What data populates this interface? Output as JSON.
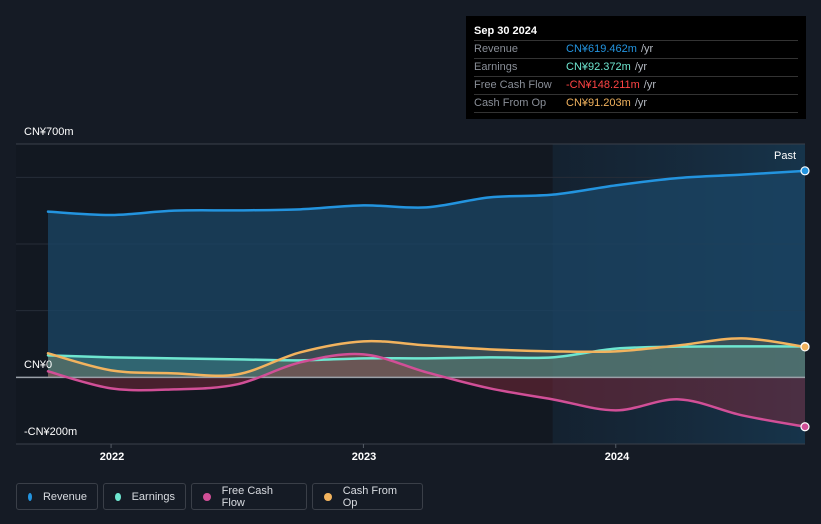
{
  "tooltip": {
    "date": "Sep 30 2024",
    "rows": [
      {
        "label": "Revenue",
        "value": "CN¥619.462m",
        "unit": "/yr",
        "color": "#2394df"
      },
      {
        "label": "Earnings",
        "value": "CN¥92.372m",
        "unit": "/yr",
        "color": "#6ee6d0"
      },
      {
        "label": "Free Cash Flow",
        "value": "-CN¥148.211m",
        "unit": "/yr",
        "color": "#ff4444"
      },
      {
        "label": "Cash From Op",
        "value": "CN¥91.203m",
        "unit": "/yr",
        "color": "#f2b35e"
      }
    ]
  },
  "legend": [
    {
      "label": "Revenue",
      "color": "#2394df"
    },
    {
      "label": "Earnings",
      "color": "#6ee6d0"
    },
    {
      "label": "Free Cash Flow",
      "color": "#d14f97"
    },
    {
      "label": "Cash From Op",
      "color": "#f2b35e"
    }
  ],
  "past_label": "Past",
  "chart_data": {
    "type": "area",
    "title": "",
    "xlabel": "",
    "ylabel": "",
    "currency": "CN¥",
    "ylim": [
      -200,
      700
    ],
    "y_tick_labels": [
      "CN¥700m",
      "CN¥0",
      "-CN¥200m"
    ],
    "y_gridlines": [
      700,
      600,
      400,
      200,
      0,
      -200
    ],
    "x_tick_labels": [
      "2022",
      "2023",
      "2024"
    ],
    "x_ticks": [
      2022.0,
      2023.0,
      2024.0
    ],
    "xlim": [
      2021.75,
      2024.75
    ],
    "past_region_start": 2023.75,
    "series": [
      {
        "name": "Revenue",
        "color": "#2394df",
        "points": [
          [
            2021.75,
            497
          ],
          [
            2022.0,
            487
          ],
          [
            2022.25,
            500
          ],
          [
            2022.5,
            501
          ],
          [
            2022.75,
            504
          ],
          [
            2023.0,
            516
          ],
          [
            2023.25,
            510
          ],
          [
            2023.5,
            540
          ],
          [
            2023.75,
            548
          ],
          [
            2024.0,
            576
          ],
          [
            2024.25,
            598
          ],
          [
            2024.5,
            608
          ],
          [
            2024.75,
            619.5
          ]
        ]
      },
      {
        "name": "Earnings",
        "color": "#6ee6d0",
        "points": [
          [
            2021.75,
            66
          ],
          [
            2022.0,
            60
          ],
          [
            2022.25,
            57
          ],
          [
            2022.5,
            54
          ],
          [
            2022.75,
            51
          ],
          [
            2023.0,
            57
          ],
          [
            2023.25,
            57
          ],
          [
            2023.5,
            60
          ],
          [
            2023.75,
            60
          ],
          [
            2024.0,
            86
          ],
          [
            2024.25,
            92
          ],
          [
            2024.5,
            93
          ],
          [
            2024.75,
            92.4
          ]
        ]
      },
      {
        "name": "Free Cash Flow",
        "color": "#d14f97",
        "points": [
          [
            2021.75,
            18
          ],
          [
            2022.0,
            -33
          ],
          [
            2022.25,
            -36
          ],
          [
            2022.5,
            -21
          ],
          [
            2022.75,
            45
          ],
          [
            2023.0,
            69
          ],
          [
            2023.25,
            15
          ],
          [
            2023.5,
            -33
          ],
          [
            2023.75,
            -66
          ],
          [
            2024.0,
            -99
          ],
          [
            2024.25,
            -66
          ],
          [
            2024.5,
            -114
          ],
          [
            2024.75,
            -148.2
          ]
        ]
      },
      {
        "name": "Cash From Op",
        "color": "#f2b35e",
        "points": [
          [
            2021.75,
            72
          ],
          [
            2022.0,
            21
          ],
          [
            2022.25,
            12
          ],
          [
            2022.5,
            9
          ],
          [
            2022.75,
            75
          ],
          [
            2023.0,
            108
          ],
          [
            2023.25,
            96
          ],
          [
            2023.5,
            84
          ],
          [
            2023.75,
            78
          ],
          [
            2024.0,
            78
          ],
          [
            2024.25,
            96
          ],
          [
            2024.5,
            117
          ],
          [
            2024.75,
            91.2
          ]
        ]
      }
    ]
  }
}
